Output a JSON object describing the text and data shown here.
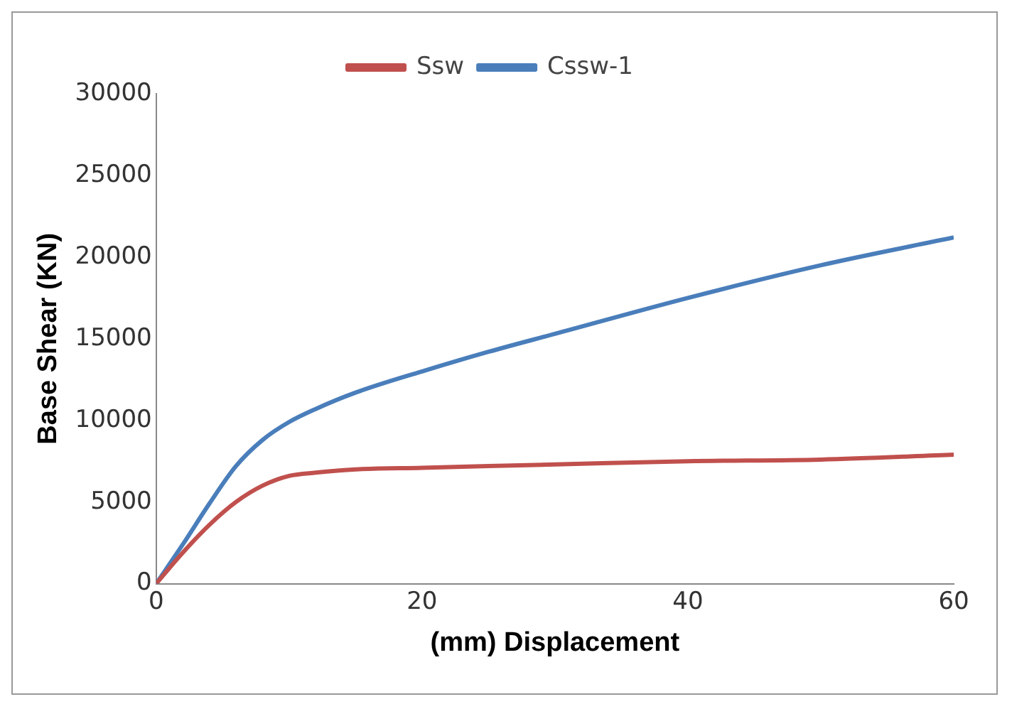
{
  "chart_data": {
    "type": "line",
    "xlabel": "(mm) Displacement",
    "ylabel": "Base Shear (KN)",
    "xlim": [
      0,
      60
    ],
    "xticks": [
      0,
      20,
      40,
      60
    ],
    "ylim": [
      0,
      30000
    ],
    "yticks": [
      0,
      5000,
      10000,
      15000,
      20000,
      25000,
      30000
    ],
    "grid": false,
    "legend": "top",
    "marker": "none",
    "line_style": "solid",
    "series": [
      {
        "name": "Ssw",
        "color": "#c0504d",
        "x": [
          0,
          2,
          4,
          6,
          8,
          10,
          12,
          15,
          20,
          30,
          40,
          50,
          60
        ],
        "values": [
          0,
          1900,
          3600,
          5000,
          6000,
          6600,
          6800,
          7000,
          7100,
          7300,
          7500,
          7600,
          7900
        ]
      },
      {
        "name": "Cssw-1",
        "color": "#4a7ebb",
        "x": [
          0,
          2,
          4,
          6,
          8,
          10,
          12,
          15,
          20,
          25,
          30,
          40,
          50,
          60
        ],
        "values": [
          0,
          2400,
          4900,
          7200,
          8800,
          9900,
          10700,
          11700,
          13000,
          14200,
          15300,
          17500,
          19500,
          21200
        ]
      }
    ]
  }
}
